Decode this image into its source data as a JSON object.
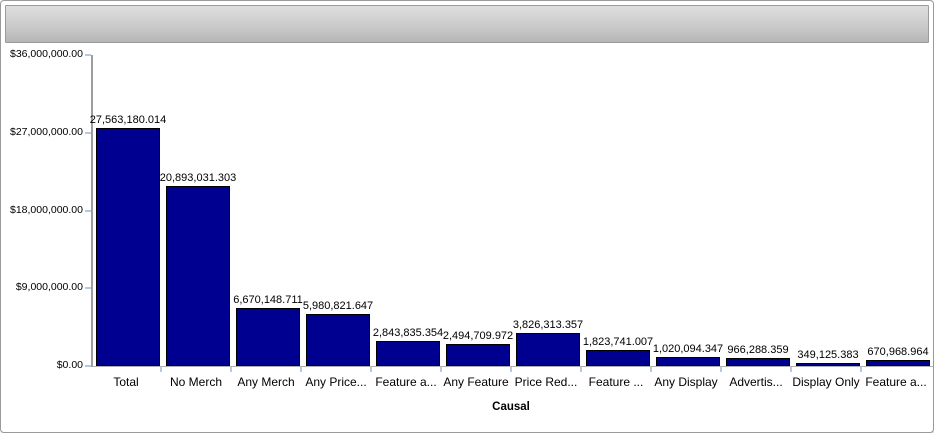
{
  "window": {
    "titlebar_text": ""
  },
  "chart_data": {
    "type": "bar",
    "title": "",
    "xlabel": "Causal",
    "ylabel": "",
    "grid": false,
    "legend": "none",
    "ylim": [
      0,
      36000000
    ],
    "categories": [
      "Total",
      "No Merch",
      "Any Merch",
      "Any Price...",
      "Feature a...",
      "Any Feature",
      "Price Red...",
      "Feature ...",
      "Any Display",
      "Advertis...",
      "Display Only",
      "Feature a..."
    ],
    "values": [
      27563180.014,
      20893031.303,
      6670148.711,
      5980821.647,
      2843835.354,
      2494709.972,
      3826313.357,
      1823741.007,
      1020094.347,
      966288.359,
      349125.383,
      670968.964
    ],
    "value_labels": [
      "27,563,180.014",
      "20,893,031.303",
      "6,670,148.711",
      "5,980,821.647",
      "2,843,835.354",
      "2,494,709.972",
      "3,826,313.357",
      "1,823,741.007",
      "1,020,094.347",
      "966,288.359",
      "349,125.383",
      "670,968.964"
    ],
    "yticks": [
      {
        "value": 0,
        "label": "$0.00"
      },
      {
        "value": 9000000,
        "label": "$9,000,000.00"
      },
      {
        "value": 18000000,
        "label": "$18,000,000.00"
      },
      {
        "value": 27000000,
        "label": "$27,000,000.00"
      },
      {
        "value": 36000000,
        "label": "$36,000,000.00"
      }
    ],
    "colors": {
      "bar_fill": "#000090",
      "bar_border": "#000000",
      "axis_line": "#9e9e9e",
      "baseline": "#b0b0b0",
      "tick_mark": "#b7c9e1",
      "label_text": "#000000"
    }
  }
}
